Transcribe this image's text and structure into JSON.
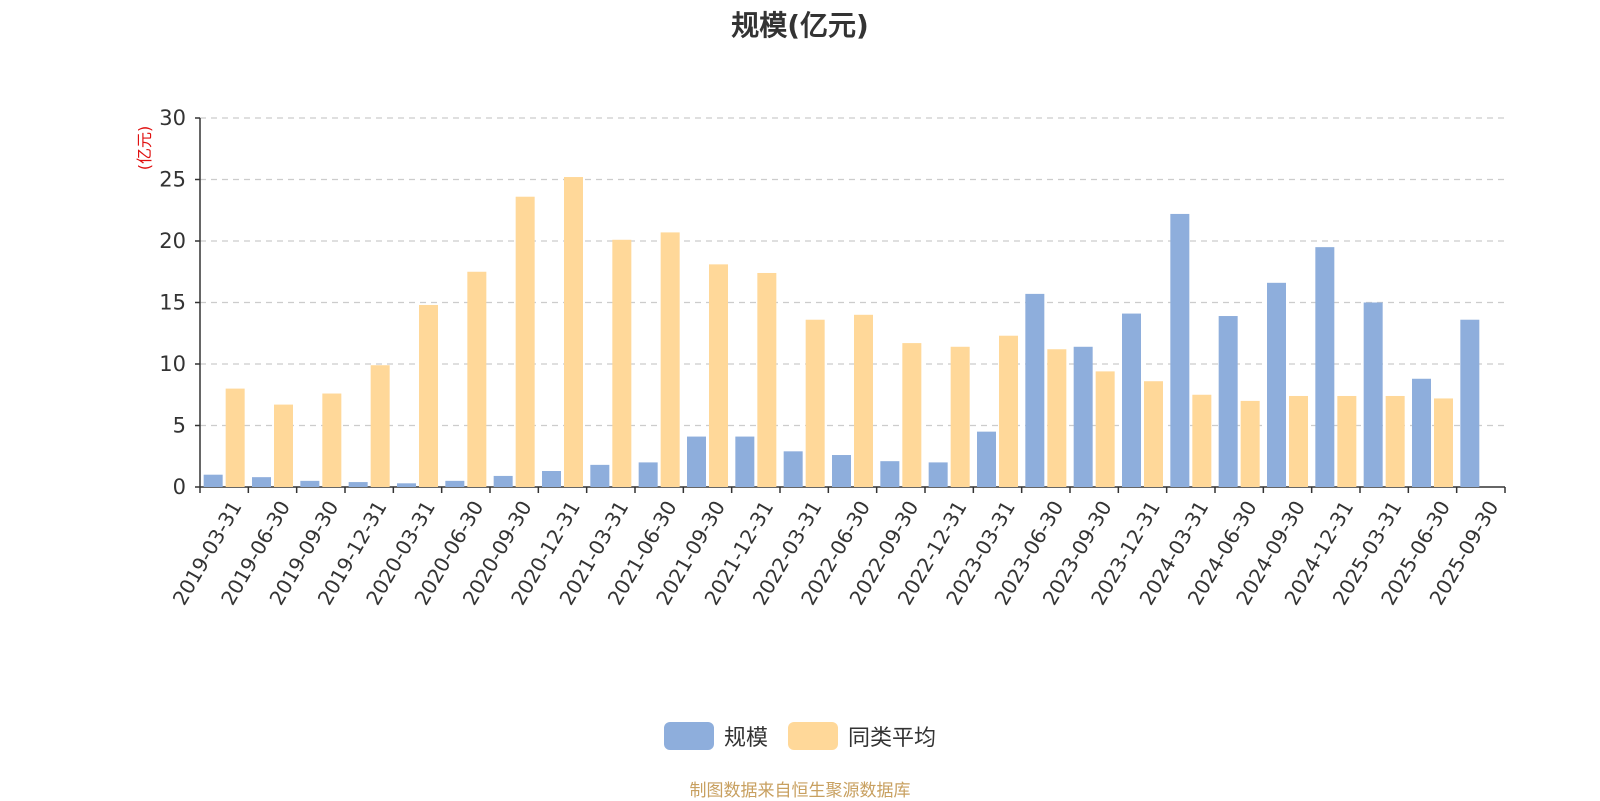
{
  "colors": {
    "series_1": "#8eaedc",
    "series_2": "#ffd899",
    "axis": "#333333",
    "grid": "#cccccc",
    "unit": "#e01010",
    "source": "#c8a060"
  },
  "chart_data": {
    "type": "bar",
    "title": "规模(亿元)",
    "ylabel": "(亿元)",
    "ylim": [
      0,
      30
    ],
    "yticks": [
      0,
      5,
      10,
      15,
      20,
      25,
      30
    ],
    "grid": true,
    "legend_position": "bottom",
    "categories": [
      "2019-03-31",
      "2019-06-30",
      "2019-09-30",
      "2019-12-31",
      "2020-03-31",
      "2020-06-30",
      "2020-09-30",
      "2020-12-31",
      "2021-03-31",
      "2021-06-30",
      "2021-09-30",
      "2021-12-31",
      "2022-03-31",
      "2022-06-30",
      "2022-09-30",
      "2022-12-31",
      "2023-03-31",
      "2023-06-30",
      "2023-09-30",
      "2023-12-31",
      "2024-03-31",
      "2024-06-30",
      "2024-09-30",
      "2024-12-31",
      "2025-03-31",
      "2025-06-30",
      "2025-09-30"
    ],
    "series": [
      {
        "name": "规模",
        "values": [
          1.0,
          0.8,
          0.5,
          0.4,
          0.3,
          0.5,
          0.9,
          1.3,
          1.8,
          2.0,
          4.1,
          4.1,
          2.9,
          2.6,
          2.1,
          2.0,
          4.5,
          15.7,
          11.4,
          14.1,
          22.2,
          13.9,
          16.6,
          19.5,
          15.0,
          8.8,
          13.6
        ]
      },
      {
        "name": "同类平均",
        "values": [
          8.0,
          6.7,
          7.6,
          9.9,
          14.8,
          17.5,
          23.6,
          25.2,
          20.1,
          20.7,
          18.1,
          17.4,
          13.6,
          14.0,
          11.7,
          11.4,
          12.3,
          11.2,
          9.4,
          8.6,
          7.5,
          7.0,
          7.4,
          7.4,
          7.4,
          7.2,
          null
        ]
      }
    ]
  },
  "legend": {
    "items": [
      "规模",
      "同类平均"
    ]
  },
  "source_text": "制图数据来自恒生聚源数据库"
}
